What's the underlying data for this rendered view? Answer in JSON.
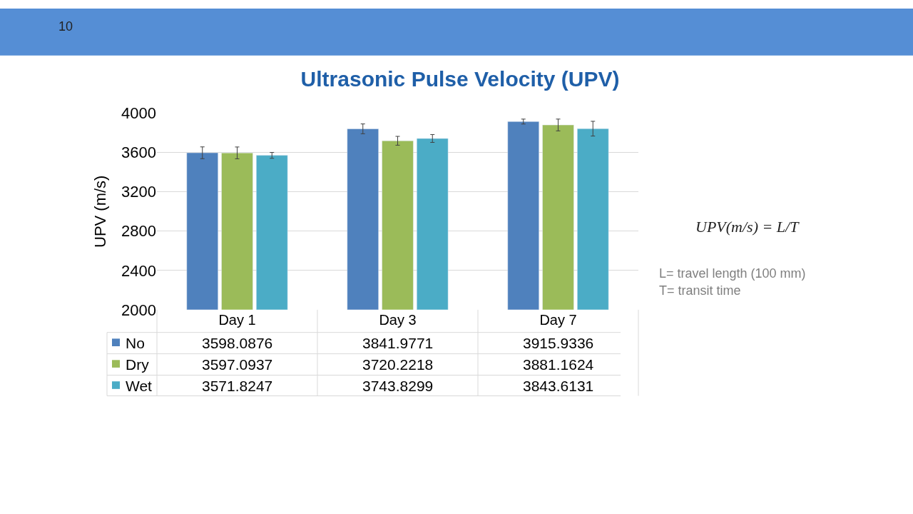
{
  "chart_data": {
    "type": "bar",
    "title": "Ultrasonic Pulse Velocity (UPV)",
    "ylabel": "UPV (m/s)",
    "categories": [
      "Day 1",
      "Day 3",
      "Day 7"
    ],
    "series": [
      {
        "name": "No",
        "color": "#4f81bd",
        "values": [
          3598.0876,
          3841.9771,
          3915.9336
        ],
        "errors": [
          60,
          50,
          25
        ]
      },
      {
        "name": "Dry",
        "color": "#9bbb59",
        "values": [
          3597.0937,
          3720.2218,
          3881.1624
        ],
        "errors": [
          60,
          45,
          60
        ]
      },
      {
        "name": "Wet",
        "color": "#4bacc6",
        "values": [
          3571.8247,
          3743.8299,
          3843.6131
        ],
        "errors": [
          30,
          40,
          75
        ]
      }
    ],
    "ylim": [
      2000,
      4000
    ],
    "yticks": [
      2000,
      2400,
      2800,
      3200,
      3600,
      4000
    ],
    "grid": "y",
    "legend": "bottom left",
    "data_labels": true,
    "annotations": [
      "10",
      "UPV(m/s) = L/T",
      "L= travel length (100 mm)",
      "T= transit time"
    ]
  }
}
